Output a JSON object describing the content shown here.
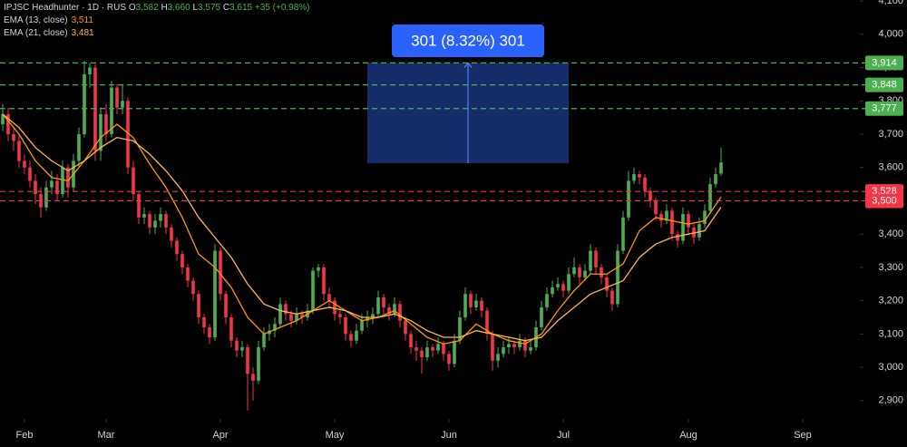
{
  "header": {
    "symbol": "IPJSC Headhunter · 1D · RUS",
    "open_label": "O",
    "open": "3,582",
    "high_label": "H",
    "high": "3,660",
    "low_label": "L",
    "low": "3,575",
    "close_label": "C",
    "close": "3,615",
    "change": "+35 (+0.98%)"
  },
  "chart_data": {
    "type": "candlestick",
    "up_color": "#4caf50",
    "down_color": "#f23645",
    "xlim": [
      -0.5,
      157.5
    ],
    "xticks": [
      {
        "value": 4,
        "label": "Feb"
      },
      {
        "value": 19,
        "label": "Mar"
      },
      {
        "value": 40,
        "label": "Apr"
      },
      {
        "value": 61,
        "label": "May"
      },
      {
        "value": 82,
        "label": "Jun"
      },
      {
        "value": 103,
        "label": "Jul"
      },
      {
        "value": 126,
        "label": "Aug"
      },
      {
        "value": 147,
        "label": "Sep"
      }
    ],
    "ylim": [
      2845,
      4103
    ],
    "yticks": [
      {
        "value": 2900,
        "label": "2,900"
      },
      {
        "value": 3000,
        "label": "3,000"
      },
      {
        "value": 3100,
        "label": "3,100"
      },
      {
        "value": 3200,
        "label": "3,200"
      },
      {
        "value": 3300,
        "label": "3,300"
      },
      {
        "value": 3400,
        "label": "3,400"
      },
      {
        "value": 3500,
        "label": "3,500"
      },
      {
        "value": 3600,
        "label": "3,600"
      },
      {
        "value": 3700,
        "label": "3,700"
      },
      {
        "value": 3800,
        "label": "3,800"
      },
      {
        "value": 3900,
        "label": "3,900"
      },
      {
        "value": 4000,
        "label": "4,000"
      },
      {
        "value": 4100,
        "label": "4,100"
      }
    ],
    "ohlc": [
      [
        3730,
        3790,
        3710,
        3760
      ],
      [
        3760,
        3780,
        3680,
        3700
      ],
      [
        3700,
        3720,
        3650,
        3680
      ],
      [
        3680,
        3700,
        3600,
        3620
      ],
      [
        3620,
        3640,
        3580,
        3600
      ],
      [
        3600,
        3620,
        3540,
        3560
      ],
      [
        3560,
        3580,
        3490,
        3520
      ],
      [
        3520,
        3540,
        3450,
        3480
      ],
      [
        3480,
        3560,
        3470,
        3540
      ],
      [
        3540,
        3590,
        3520,
        3560
      ],
      [
        3560,
        3580,
        3500,
        3520
      ],
      [
        3520,
        3620,
        3510,
        3600
      ],
      [
        3600,
        3610,
        3510,
        3540
      ],
      [
        3540,
        3640,
        3530,
        3620
      ],
      [
        3620,
        3720,
        3600,
        3700
      ],
      [
        3700,
        3920,
        3690,
        3880
      ],
      [
        3880,
        3914,
        3840,
        3900
      ],
      [
        3900,
        3910,
        3620,
        3650
      ],
      [
        3650,
        3780,
        3620,
        3760
      ],
      [
        3760,
        3790,
        3680,
        3700
      ],
      [
        3700,
        3860,
        3690,
        3840
      ],
      [
        3840,
        3850,
        3760,
        3780
      ],
      [
        3780,
        3848,
        3760,
        3800
      ],
      [
        3800,
        3810,
        3580,
        3600
      ],
      [
        3600,
        3620,
        3500,
        3520
      ],
      [
        3520,
        3530,
        3430,
        3450
      ],
      [
        3450,
        3480,
        3430,
        3460
      ],
      [
        3460,
        3470,
        3400,
        3420
      ],
      [
        3420,
        3460,
        3400,
        3440
      ],
      [
        3440,
        3480,
        3420,
        3460
      ],
      [
        3460,
        3470,
        3400,
        3420
      ],
      [
        3420,
        3430,
        3360,
        3380
      ],
      [
        3380,
        3390,
        3320,
        3340
      ],
      [
        3340,
        3350,
        3280,
        3300
      ],
      [
        3300,
        3310,
        3240,
        3260
      ],
      [
        3260,
        3270,
        3200,
        3220
      ],
      [
        3220,
        3230,
        3130,
        3150
      ],
      [
        3150,
        3160,
        3100,
        3120
      ],
      [
        3120,
        3130,
        3070,
        3090
      ],
      [
        3090,
        3370,
        3080,
        3350
      ],
      [
        3350,
        3360,
        3200,
        3220
      ],
      [
        3220,
        3230,
        3130,
        3150
      ],
      [
        3150,
        3160,
        3060,
        3080
      ],
      [
        3080,
        3090,
        3030,
        3050
      ],
      [
        3050,
        3080,
        3030,
        3060
      ],
      [
        3060,
        3070,
        2870,
        2980
      ],
      [
        2980,
        3000,
        2900,
        2960
      ],
      [
        2960,
        3080,
        2950,
        3060
      ],
      [
        3060,
        3120,
        3050,
        3100
      ],
      [
        3100,
        3130,
        3080,
        3110
      ],
      [
        3110,
        3150,
        3090,
        3130
      ],
      [
        3130,
        3210,
        3120,
        3190
      ],
      [
        3190,
        3200,
        3140,
        3160
      ],
      [
        3160,
        3170,
        3120,
        3140
      ],
      [
        3140,
        3180,
        3130,
        3160
      ],
      [
        3160,
        3170,
        3130,
        3150
      ],
      [
        3150,
        3190,
        3140,
        3170
      ],
      [
        3170,
        3300,
        3160,
        3290
      ],
      [
        3290,
        3310,
        3270,
        3300
      ],
      [
        3300,
        3310,
        3200,
        3220
      ],
      [
        3220,
        3240,
        3180,
        3200
      ],
      [
        3200,
        3210,
        3140,
        3160
      ],
      [
        3160,
        3180,
        3130,
        3150
      ],
      [
        3150,
        3160,
        3080,
        3100
      ],
      [
        3100,
        3110,
        3060,
        3080
      ],
      [
        3080,
        3130,
        3070,
        3110
      ],
      [
        3110,
        3160,
        3100,
        3140
      ],
      [
        3140,
        3170,
        3120,
        3150
      ],
      [
        3150,
        3180,
        3130,
        3160
      ],
      [
        3160,
        3230,
        3150,
        3210
      ],
      [
        3210,
        3220,
        3160,
        3180
      ],
      [
        3180,
        3190,
        3140,
        3160
      ],
      [
        3160,
        3210,
        3150,
        3190
      ],
      [
        3190,
        3200,
        3120,
        3140
      ],
      [
        3140,
        3150,
        3080,
        3100
      ],
      [
        3100,
        3110,
        3040,
        3060
      ],
      [
        3060,
        3080,
        3020,
        3050
      ],
      [
        3050,
        3060,
        2980,
        3030
      ],
      [
        3030,
        3080,
        3020,
        3060
      ],
      [
        3060,
        3070,
        3030,
        3050
      ],
      [
        3050,
        3090,
        3040,
        3070
      ],
      [
        3070,
        3080,
        3020,
        3040
      ],
      [
        3040,
        3050,
        2990,
        3010
      ],
      [
        3010,
        3100,
        3000,
        3080
      ],
      [
        3080,
        3170,
        3070,
        3150
      ],
      [
        3150,
        3240,
        3140,
        3220
      ],
      [
        3220,
        3230,
        3160,
        3180
      ],
      [
        3180,
        3220,
        3170,
        3200
      ],
      [
        3200,
        3210,
        3150,
        3170
      ],
      [
        3170,
        3180,
        3080,
        3100
      ],
      [
        3100,
        3110,
        2990,
        3020
      ],
      [
        3020,
        3060,
        3000,
        3040
      ],
      [
        3040,
        3080,
        3030,
        3060
      ],
      [
        3060,
        3090,
        3040,
        3070
      ],
      [
        3070,
        3080,
        3040,
        3060
      ],
      [
        3060,
        3100,
        3050,
        3080
      ],
      [
        3080,
        3090,
        3030,
        3050
      ],
      [
        3050,
        3080,
        3040,
        3060
      ],
      [
        3060,
        3140,
        3050,
        3120
      ],
      [
        3120,
        3200,
        3110,
        3180
      ],
      [
        3180,
        3240,
        3170,
        3220
      ],
      [
        3220,
        3260,
        3210,
        3240
      ],
      [
        3240,
        3270,
        3230,
        3250
      ],
      [
        3250,
        3260,
        3210,
        3230
      ],
      [
        3230,
        3300,
        3220,
        3280
      ],
      [
        3280,
        3330,
        3270,
        3300
      ],
      [
        3300,
        3310,
        3250,
        3270
      ],
      [
        3270,
        3310,
        3260,
        3290
      ],
      [
        3290,
        3370,
        3280,
        3350
      ],
      [
        3350,
        3360,
        3280,
        3300
      ],
      [
        3300,
        3310,
        3250,
        3270
      ],
      [
        3270,
        3280,
        3210,
        3230
      ],
      [
        3230,
        3240,
        3170,
        3190
      ],
      [
        3190,
        3370,
        3180,
        3350
      ],
      [
        3350,
        3470,
        3340,
        3450
      ],
      [
        3450,
        3590,
        3440,
        3560
      ],
      [
        3560,
        3600,
        3550,
        3580
      ],
      [
        3580,
        3590,
        3550,
        3570
      ],
      [
        3570,
        3580,
        3510,
        3530
      ],
      [
        3530,
        3540,
        3480,
        3500
      ],
      [
        3500,
        3510,
        3440,
        3460
      ],
      [
        3460,
        3470,
        3420,
        3440
      ],
      [
        3440,
        3490,
        3430,
        3470
      ],
      [
        3470,
        3480,
        3380,
        3400
      ],
      [
        3400,
        3410,
        3360,
        3380
      ],
      [
        3380,
        3480,
        3370,
        3460
      ],
      [
        3460,
        3470,
        3400,
        3420
      ],
      [
        3420,
        3430,
        3370,
        3390
      ],
      [
        3390,
        3450,
        3380,
        3430
      ],
      [
        3430,
        3490,
        3420,
        3470
      ],
      [
        3470,
        3570,
        3460,
        3550
      ],
      [
        3550,
        3600,
        3540,
        3580
      ],
      [
        3582,
        3660,
        3575,
        3615
      ]
    ],
    "series": [
      {
        "name": "EMA (13, close)",
        "last_label": "3,511",
        "color": "#ff9800",
        "x": [
          0,
          3,
          6,
          9,
          12,
          15,
          18,
          21,
          24,
          27,
          30,
          33,
          36,
          39,
          42,
          45,
          48,
          51,
          54,
          57,
          60,
          63,
          66,
          69,
          72,
          75,
          78,
          81,
          84,
          87,
          90,
          93,
          96,
          99,
          102,
          105,
          108,
          111,
          114,
          117,
          120,
          123,
          126,
          129,
          132
        ],
        "values": [
          3760,
          3700,
          3620,
          3570,
          3560,
          3620,
          3690,
          3730,
          3690,
          3610,
          3540,
          3450,
          3340,
          3300,
          3240,
          3150,
          3100,
          3120,
          3140,
          3170,
          3200,
          3170,
          3140,
          3150,
          3170,
          3130,
          3090,
          3070,
          3080,
          3130,
          3100,
          3080,
          3070,
          3100,
          3170,
          3230,
          3280,
          3280,
          3310,
          3410,
          3450,
          3440,
          3430,
          3440,
          3511
        ]
      },
      {
        "name": "EMA (21, close)",
        "last_label": "3,481",
        "color": "#ffb74d",
        "x": [
          0,
          3,
          6,
          9,
          12,
          15,
          18,
          21,
          24,
          27,
          30,
          33,
          36,
          39,
          42,
          45,
          48,
          51,
          54,
          57,
          60,
          63,
          66,
          69,
          72,
          75,
          78,
          81,
          84,
          87,
          90,
          93,
          96,
          99,
          102,
          105,
          108,
          111,
          114,
          117,
          120,
          123,
          126,
          129,
          132
        ],
        "values": [
          3760,
          3720,
          3660,
          3620,
          3590,
          3620,
          3660,
          3690,
          3680,
          3640,
          3590,
          3530,
          3450,
          3390,
          3330,
          3250,
          3190,
          3170,
          3160,
          3170,
          3180,
          3170,
          3150,
          3150,
          3160,
          3140,
          3110,
          3090,
          3090,
          3110,
          3100,
          3090,
          3080,
          3090,
          3140,
          3180,
          3220,
          3240,
          3260,
          3330,
          3370,
          3390,
          3400,
          3410,
          3481
        ]
      }
    ],
    "price_lines": [
      {
        "value": 3914,
        "label": "3,914",
        "color": "#4caf50"
      },
      {
        "value": 3848,
        "label": "3,848",
        "color": "#4caf50"
      },
      {
        "value": 3777,
        "label": "3,777",
        "color": "#4caf50"
      },
      {
        "value": 3528,
        "label": "3,528",
        "color": "#f23645"
      },
      {
        "value": 3500,
        "label": "3,500",
        "color": "#f23645"
      }
    ],
    "measure": {
      "ylim": [
        3613,
        3914
      ],
      "xlim": [
        67,
        104
      ],
      "label": "301 (8.32%) 301"
    }
  }
}
